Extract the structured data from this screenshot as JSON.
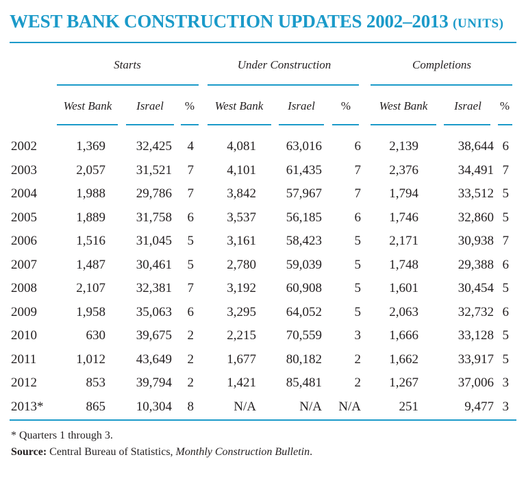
{
  "title": "WEST BANK CONSTRUCTION UPDATES 2002–2013",
  "title_units": "(UNITS)",
  "groups": [
    "Starts",
    "Under Construction",
    "Completions"
  ],
  "columns": [
    "West Bank",
    "Israel",
    "%",
    "West Bank",
    "Israel",
    "%",
    "West Bank",
    "Israel",
    "%"
  ],
  "rows": [
    {
      "year": "2002",
      "values": [
        "1,369",
        "32,425",
        "4",
        "4,081",
        "63,016",
        "6",
        "2,139",
        "38,644",
        "6"
      ]
    },
    {
      "year": "2003",
      "values": [
        "2,057",
        "31,521",
        "7",
        "4,101",
        "61,435",
        "7",
        "2,376",
        "34,491",
        "7"
      ]
    },
    {
      "year": "2004",
      "values": [
        "1,988",
        "29,786",
        "7",
        "3,842",
        "57,967",
        "7",
        "1,794",
        "33,512",
        "5"
      ]
    },
    {
      "year": "2005",
      "values": [
        "1,889",
        "31,758",
        "6",
        "3,537",
        "56,185",
        "6",
        "1,746",
        "32,860",
        "5"
      ]
    },
    {
      "year": "2006",
      "values": [
        "1,516",
        "31,045",
        "5",
        "3,161",
        "58,423",
        "5",
        "2,171",
        "30,938",
        "7"
      ]
    },
    {
      "year": "2007",
      "values": [
        "1,487",
        "30,461",
        "5",
        "2,780",
        "59,039",
        "5",
        "1,748",
        "29,388",
        "6"
      ]
    },
    {
      "year": "2008",
      "values": [
        "2,107",
        "32,381",
        "7",
        "3,192",
        "60,908",
        "5",
        "1,601",
        "30,454",
        "5"
      ]
    },
    {
      "year": "2009",
      "values": [
        "1,958",
        "35,063",
        "6",
        "3,295",
        "64,052",
        "5",
        "2,063",
        "32,732",
        "6"
      ]
    },
    {
      "year": "2010",
      "values": [
        "630",
        "39,675",
        "2",
        "2,215",
        "70,559",
        "3",
        "1,666",
        "33,128",
        "5"
      ]
    },
    {
      "year": "2011",
      "values": [
        "1,012",
        "43,649",
        "2",
        "1,677",
        "80,182",
        "2",
        "1,662",
        "33,917",
        "5"
      ]
    },
    {
      "year": "2012",
      "values": [
        "853",
        "39,794",
        "2",
        "1,421",
        "85,481",
        "2",
        "1,267",
        "37,006",
        "3"
      ]
    },
    {
      "year": "2013*",
      "values": [
        "865",
        "10,304",
        "8",
        "N/A",
        "N/A",
        "N/A",
        "251",
        "9,477",
        "3"
      ]
    }
  ],
  "footnote": "* Quarters 1 through 3.",
  "source_label": "Source:",
  "source_text": " Central Bureau of Statistics, ",
  "source_publication": "Monthly Construction Bulletin",
  "source_end": ".",
  "accent_color": "#1b9ac9"
}
